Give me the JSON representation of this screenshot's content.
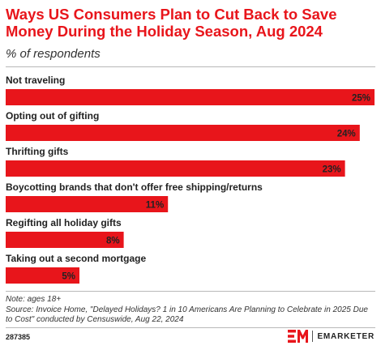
{
  "header": {
    "title": "Ways US Consumers Plan to Cut Back to Save Money During the Holiday Season, Aug 2024",
    "subtitle": "% of respondents"
  },
  "chart_data": {
    "type": "bar",
    "orientation": "horizontal",
    "title": "Ways US Consumers Plan to Cut Back to Save Money During the Holiday Season, Aug 2024",
    "subtitle": "% of respondents",
    "categories": [
      "Not traveling",
      "Opting out of gifting",
      "Thrifting gifts",
      "Boycotting brands that don't offer free shipping/returns",
      "Regifting all holiday gifts",
      "Taking out a second mortgage"
    ],
    "values": [
      25,
      24,
      23,
      11,
      8,
      5
    ],
    "value_labels": [
      "25%",
      "24%",
      "23%",
      "11%",
      "8%",
      "5%"
    ],
    "unit": "%",
    "xlim": [
      0,
      25
    ],
    "grid": false,
    "legend": "none",
    "bar_color": "#e8151b"
  },
  "footer": {
    "note": "Note: ages 18+",
    "source": "Source: Invoice Home, \"Delayed Holidays? 1 in 10 Americans Are Planning to Celebrate in 2025 Due to Cost\" conducted by Censuswide, Aug 22, 2024",
    "chart_id": "287385",
    "brand": "EMARKETER"
  },
  "colors": {
    "accent": "#e8151b",
    "text": "#222222"
  }
}
